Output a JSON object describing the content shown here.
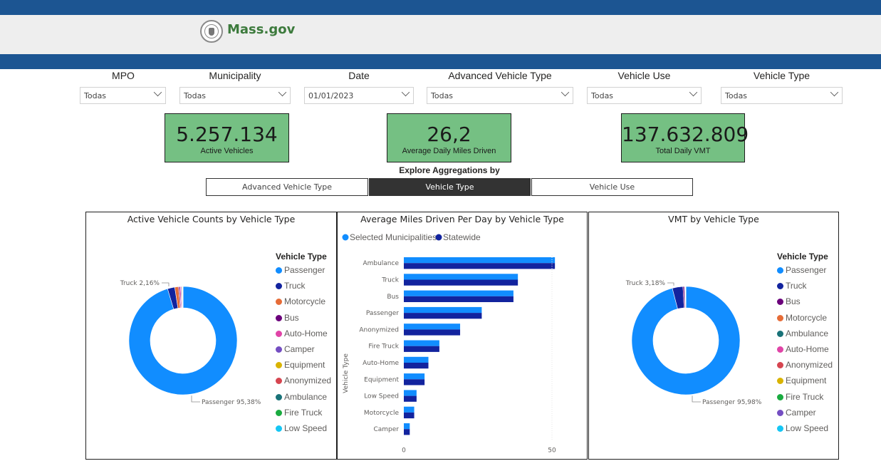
{
  "header": {
    "logo_text": "Mass.gov",
    "seal_icon": "massachusetts-seal-icon"
  },
  "slicers": [
    {
      "label": "MPO",
      "value": "Todas"
    },
    {
      "label": "Municipality",
      "value": "Todas"
    },
    {
      "label": "Date",
      "value": "01/01/2023"
    },
    {
      "label": "Advanced Vehicle Type",
      "value": "Todas"
    },
    {
      "label": "Vehicle Use",
      "value": "Todas"
    },
    {
      "label": "Vehicle Type",
      "value": "Todas"
    }
  ],
  "kpis": [
    {
      "value": "5.257.134",
      "label": "Active Vehicles"
    },
    {
      "value": "26,2",
      "label": "Average Daily Miles Driven"
    },
    {
      "value": "137.632.809",
      "label": "Total Daily VMT"
    }
  ],
  "kpi_color": "#75c083",
  "brand_color": "#1c5592",
  "explore": {
    "title": "Explore Aggregations by",
    "options": [
      "Advanced Vehicle Type",
      "Vehicle Type",
      "Vehicle Use"
    ],
    "selected": "Vehicle Type"
  },
  "chart_data": [
    {
      "type": "pie",
      "variant": "donut",
      "title": "Active Vehicle Counts by Vehicle Type",
      "legend_title": "Vehicle Type",
      "legend_position": "right",
      "slices": [
        {
          "name": "Passenger",
          "value": 95.38,
          "color": "#118dff"
        },
        {
          "name": "Truck",
          "value": 2.16,
          "color": "#12239e"
        },
        {
          "name": "Motorcycle",
          "value": 1.1,
          "color": "#e66c37"
        },
        {
          "name": "Bus",
          "value": 0.35,
          "color": "#6b007b"
        },
        {
          "name": "Auto-Home",
          "value": 0.35,
          "color": "#e044a7"
        },
        {
          "name": "Camper",
          "value": 0.25,
          "color": "#744ec2"
        },
        {
          "name": "Equipment",
          "value": 0.2,
          "color": "#d9b300"
        },
        {
          "name": "Anonymized",
          "value": 0.1,
          "color": "#d64550"
        },
        {
          "name": "Ambulance",
          "value": 0.05,
          "color": "#197278"
        },
        {
          "name": "Fire Truck",
          "value": 0.03,
          "color": "#1aab40"
        },
        {
          "name": "Low Speed",
          "value": 0.03,
          "color": "#15c6f4"
        }
      ],
      "annotations": [
        {
          "text": "Truck 2,16%",
          "slice": "Truck"
        },
        {
          "text": "Passenger 95,38%",
          "slice": "Passenger"
        }
      ]
    },
    {
      "type": "bar",
      "orientation": "horizontal",
      "title": "Average Miles Driven Per Day by Vehicle Type",
      "ylabel": "Vehicle Type",
      "xlabel": "",
      "xlim": [
        0,
        50
      ],
      "x_ticks": [
        0,
        50
      ],
      "legend_position": "top-left",
      "categories": [
        "Ambulance",
        "Truck",
        "Bus",
        "Passenger",
        "Anonymized",
        "Fire Truck",
        "Auto-Home",
        "Equipment",
        "Low Speed",
        "Motorcycle",
        "Camper"
      ],
      "series": [
        {
          "name": "Selected Municipalities",
          "color": "#118dff",
          "values": [
            51,
            38.5,
            37,
            26.3,
            19,
            12,
            8.3,
            7,
            4.3,
            3.5,
            2
          ]
        },
        {
          "name": "Statewide",
          "color": "#12239e",
          "values": [
            51,
            38.5,
            37,
            26.3,
            19,
            12,
            8.3,
            7,
            4.3,
            3.5,
            2
          ]
        }
      ]
    },
    {
      "type": "pie",
      "variant": "donut",
      "title": "VMT by Vehicle Type",
      "legend_title": "Vehicle Type",
      "legend_position": "right",
      "slices": [
        {
          "name": "Passenger",
          "value": 95.98,
          "color": "#118dff"
        },
        {
          "name": "Truck",
          "value": 3.18,
          "color": "#12239e"
        },
        {
          "name": "Bus",
          "value": 0.45,
          "color": "#6b007b"
        },
        {
          "name": "Motorcycle",
          "value": 0.15,
          "color": "#e66c37"
        },
        {
          "name": "Ambulance",
          "value": 0.08,
          "color": "#197278"
        },
        {
          "name": "Auto-Home",
          "value": 0.06,
          "color": "#e044a7"
        },
        {
          "name": "Anonymized",
          "value": 0.04,
          "color": "#d64550"
        },
        {
          "name": "Equipment",
          "value": 0.03,
          "color": "#d9b300"
        },
        {
          "name": "Fire Truck",
          "value": 0.02,
          "color": "#1aab40"
        },
        {
          "name": "Camper",
          "value": 0.01,
          "color": "#744ec2"
        },
        {
          "name": "Low Speed",
          "value": 0.01,
          "color": "#15c6f4"
        }
      ],
      "annotations": [
        {
          "text": "Truck 3,18%",
          "slice": "Truck"
        },
        {
          "text": "Passenger 95,98%",
          "slice": "Passenger"
        }
      ]
    }
  ]
}
